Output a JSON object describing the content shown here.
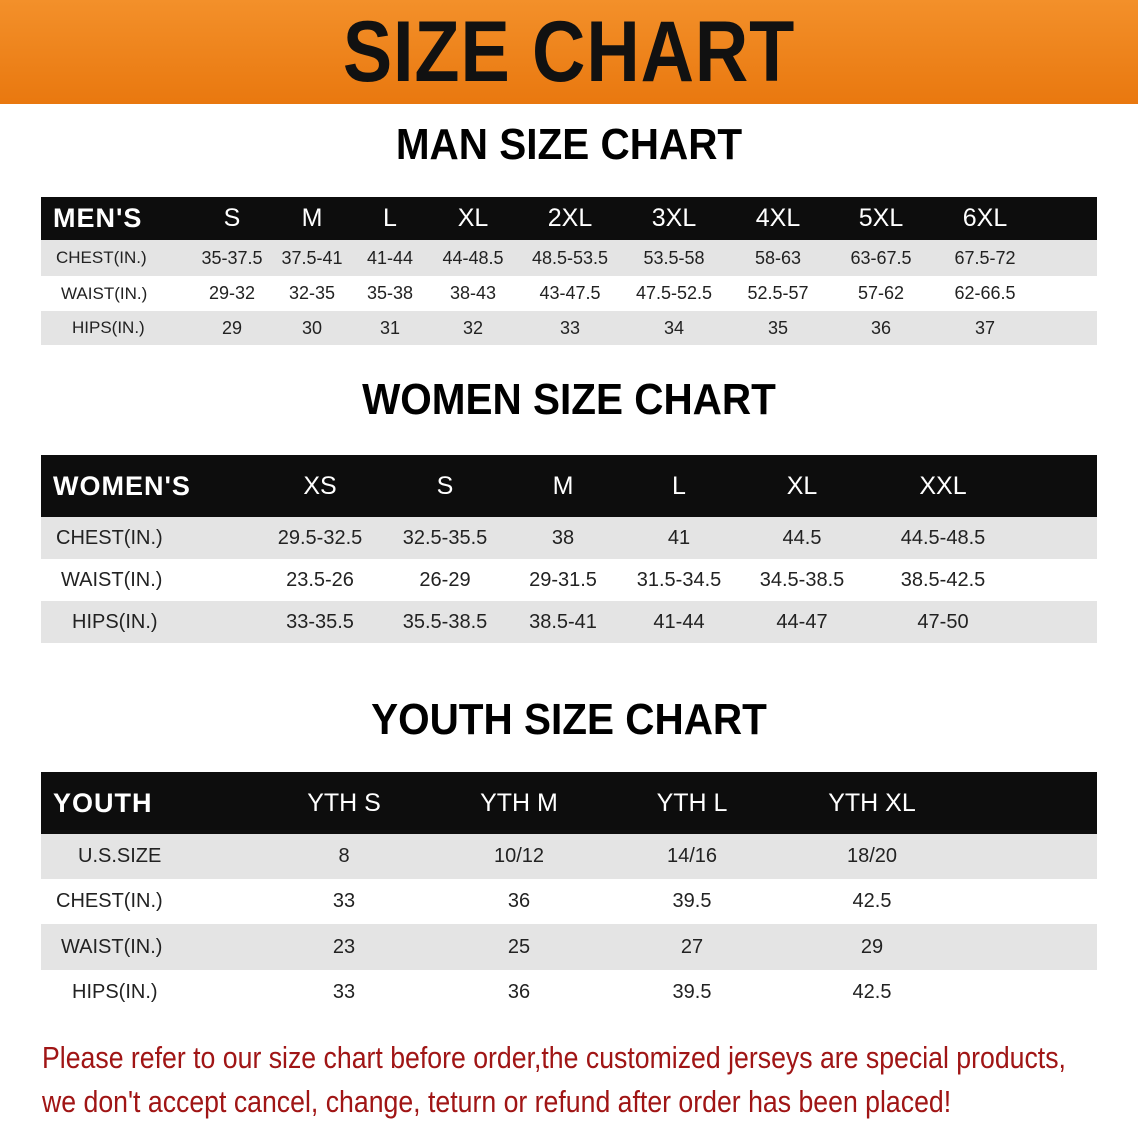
{
  "banner": {
    "title": "SIZE CHART",
    "color": "#ee8420"
  },
  "men": {
    "title": "MAN SIZE CHART",
    "header_label": "MEN'S",
    "columns": [
      "S",
      "M",
      "L",
      "XL",
      "2XL",
      "3XL",
      "4XL",
      "5XL",
      "6XL"
    ],
    "rows": [
      {
        "label": "CHEST(IN.)",
        "values": [
          "35-37.5",
          "37.5-41",
          "41-44",
          "44-48.5",
          "48.5-53.5",
          "53.5-58",
          "58-63",
          "63-67.5",
          "67.5-72"
        ]
      },
      {
        "label": "WAIST(IN.)",
        "values": [
          "29-32",
          "32-35",
          "35-38",
          "38-43",
          "43-47.5",
          "47.5-52.5",
          "52.5-57",
          "57-62",
          "62-66.5"
        ]
      },
      {
        "label": "HIPS(IN.)",
        "values": [
          "29",
          "30",
          "31",
          "32",
          "33",
          "34",
          "35",
          "36",
          "37"
        ]
      }
    ]
  },
  "women": {
    "title": "WOMEN SIZE CHART",
    "header_label": "WOMEN'S",
    "columns": [
      "XS",
      "S",
      "M",
      "L",
      "XL",
      "XXL"
    ],
    "rows": [
      {
        "label": "CHEST(IN.)",
        "values": [
          "29.5-32.5",
          "32.5-35.5",
          "38",
          "41",
          "44.5",
          "44.5-48.5"
        ]
      },
      {
        "label": "WAIST(IN.)",
        "values": [
          "23.5-26",
          "26-29",
          "29-31.5",
          "31.5-34.5",
          "34.5-38.5",
          "38.5-42.5"
        ]
      },
      {
        "label": "HIPS(IN.)",
        "values": [
          "33-35.5",
          "35.5-38.5",
          "38.5-41",
          "41-44",
          "44-47",
          "47-50"
        ]
      }
    ]
  },
  "youth": {
    "title": "YOUTH SIZE CHART",
    "header_label": "YOUTH",
    "columns": [
      "YTH S",
      "YTH M",
      "YTH L",
      "YTH XL"
    ],
    "rows": [
      {
        "label": "U.S.SIZE",
        "values": [
          "8",
          "10/12",
          "14/16",
          "18/20"
        ]
      },
      {
        "label": "CHEST(IN.)",
        "values": [
          "33",
          "36",
          "39.5",
          "42.5"
        ]
      },
      {
        "label": "WAIST(IN.)",
        "values": [
          "23",
          "25",
          "27",
          "29"
        ]
      },
      {
        "label": "HIPS(IN.)",
        "values": [
          "33",
          "36",
          "39.5",
          "42.5"
        ]
      }
    ]
  },
  "notice": {
    "line1": "Please refer to our size chart before order,the customized jerseys are special products,",
    "line2": "we don't accept cancel, change, teturn or refund after order has been placed!",
    "color": "#a01515"
  }
}
